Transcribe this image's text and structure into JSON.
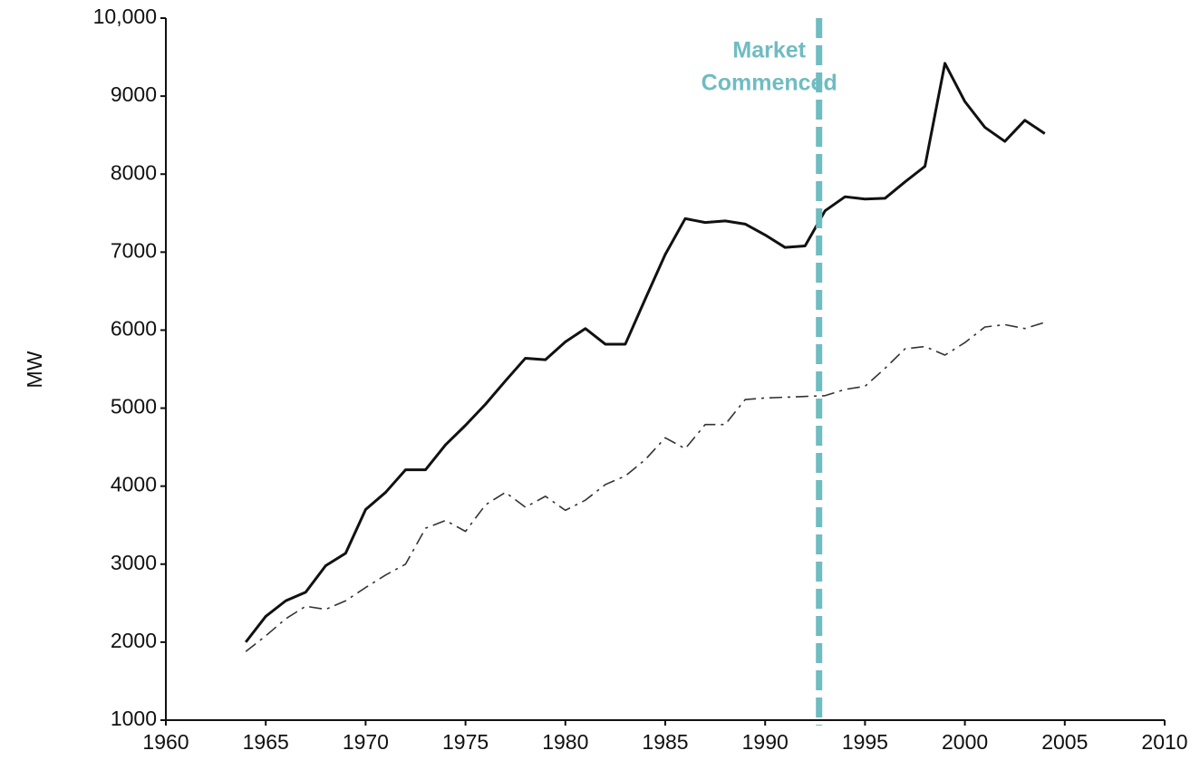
{
  "chart_data": {
    "type": "line",
    "ylabel": "MW",
    "x": [
      1964,
      1965,
      1966,
      1967,
      1968,
      1969,
      1970,
      1971,
      1972,
      1973,
      1974,
      1975,
      1976,
      1977,
      1978,
      1979,
      1980,
      1981,
      1982,
      1983,
      1984,
      1985,
      1986,
      1987,
      1988,
      1989,
      1990,
      1991,
      1992,
      1993,
      1994,
      1995,
      1996,
      1997,
      1998,
      1999,
      2000,
      2001,
      2002,
      2003,
      2004
    ],
    "series": [
      {
        "color": "#111111",
        "dash": false,
        "values": [
          2000,
          2330,
          2530,
          2640,
          2980,
          3140,
          3700,
          3920,
          4210,
          4210,
          4530,
          4780,
          5050,
          5350,
          5640,
          5620,
          5850,
          6020,
          5820,
          5820,
          6400,
          6970,
          7430,
          7380,
          7400,
          7360,
          7220,
          7060,
          7080,
          7530,
          7710,
          7680,
          7690,
          7900,
          8100,
          9420,
          8930,
          8600,
          8420,
          8690,
          8520
        ]
      },
      {
        "color": "#333333",
        "dash": true,
        "values": [
          1880,
          2080,
          2300,
          2460,
          2420,
          2530,
          2700,
          2860,
          3000,
          3460,
          3560,
          3420,
          3760,
          3920,
          3730,
          3870,
          3690,
          3820,
          4020,
          4130,
          4340,
          4620,
          4480,
          4790,
          4790,
          5110,
          5130,
          5140,
          5150,
          5160,
          5240,
          5280,
          5510,
          5760,
          5790,
          5680,
          5840,
          6040,
          6070,
          6020,
          6100
        ]
      }
    ],
    "annotation": {
      "text": [
        "Market",
        "Commenced"
      ],
      "x": 1992.7,
      "color": "#6fbcc1"
    },
    "xlim": [
      1960,
      2010
    ],
    "xticks": [
      1960,
      1965,
      1970,
      1975,
      1980,
      1985,
      1990,
      1995,
      2000,
      2005,
      2010
    ],
    "ylim": [
      1000,
      10000
    ],
    "yticks": [
      1000,
      2000,
      3000,
      4000,
      5000,
      6000,
      7000,
      8000,
      9000,
      {
        "value": 10000,
        "label": "10,000"
      }
    ]
  }
}
